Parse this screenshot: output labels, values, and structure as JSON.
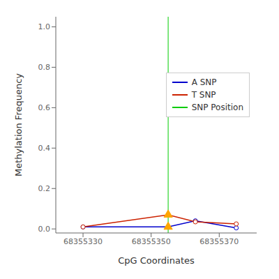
{
  "chart_data": {
    "type": "line",
    "x_label": "CpG Coordinates",
    "y_label": "Methylation Frequency",
    "xlim": [
      68355322,
      68355381
    ],
    "ylim": [
      -0.02,
      1.05
    ],
    "xticks": [
      68355330,
      68355350,
      68355370
    ],
    "yticks": [
      {
        "value": 0.0,
        "label": "0.0"
      },
      0.2,
      0.4,
      0.6,
      0.8,
      {
        "value": 1.0,
        "label": "1.0"
      }
    ],
    "grid": false,
    "legend": "upper right",
    "series": [
      {
        "name": "A SNP",
        "type": "line",
        "color": "#0000cc",
        "marker": "circle",
        "x": [
          68355330,
          68355355,
          68355363,
          68355375
        ],
        "values": [
          0.01,
          0.01,
          0.04,
          0.005
        ]
      },
      {
        "name": "T SNP",
        "type": "line",
        "color": "#cc2200",
        "marker": "circle",
        "x": [
          68355330,
          68355355,
          68355363,
          68355375
        ],
        "values": [
          0.01,
          0.07,
          0.035,
          0.025
        ]
      },
      {
        "type": "scatter",
        "color": "#FFA500",
        "marker": "triangle",
        "x": [
          68355355,
          68355355
        ],
        "values": [
          0.01,
          0.07
        ]
      }
    ],
    "vlines": [
      {
        "name": "SNP Position",
        "color": "#00cc00",
        "x": 68355355
      }
    ]
  }
}
